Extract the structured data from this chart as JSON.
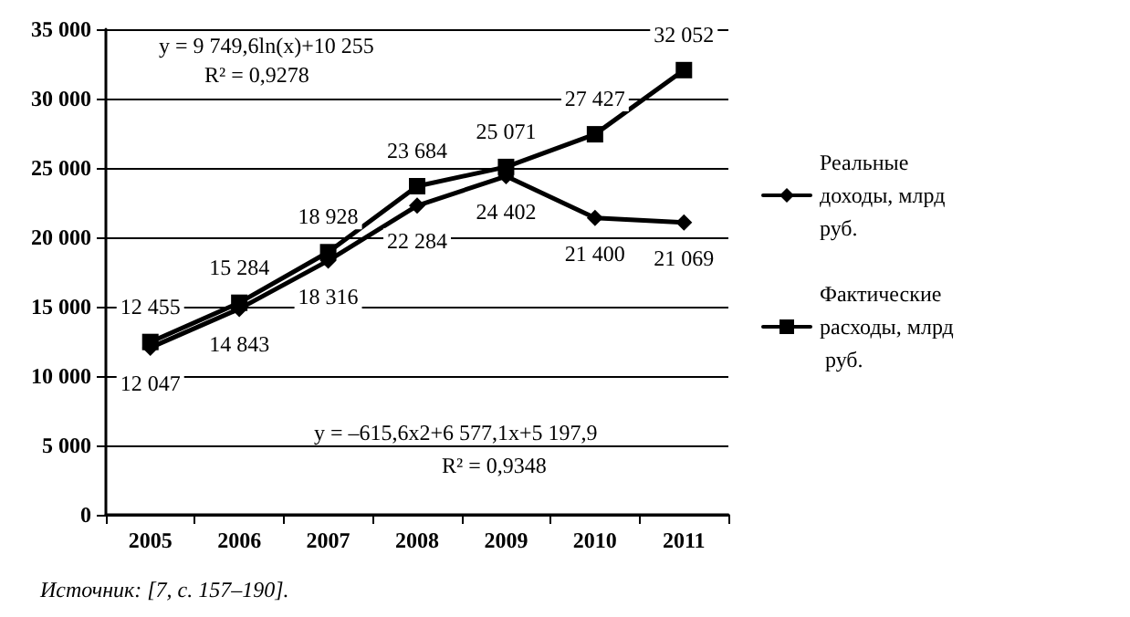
{
  "chart_data": {
    "type": "line",
    "categories": [
      "2005",
      "2006",
      "2007",
      "2008",
      "2009",
      "2010",
      "2011"
    ],
    "series": [
      {
        "name": "Реальные доходы, млрд руб.",
        "color": "#000000",
        "marker": "diamond",
        "values": [
          12047,
          14843,
          18316,
          22284,
          24402,
          21400,
          21069
        ],
        "value_labels": [
          "12 047",
          "14 843",
          "18 316",
          "22 284",
          "24 402",
          "21 400",
          "21 069"
        ]
      },
      {
        "name": "Фактические расходы, млрд руб.",
        "color": "#000000",
        "marker": "square",
        "values": [
          12455,
          15284,
          18928,
          23684,
          25071,
          27427,
          32052
        ],
        "value_labels": [
          "12 455",
          "15 284",
          "18 928",
          "23 684",
          "25 071",
          "27 427",
          "32 052"
        ]
      }
    ],
    "ylim": [
      0,
      35000
    ],
    "yticks": [
      {
        "value": 0,
        "label": "0"
      },
      {
        "value": 5000,
        "label": "5 000"
      },
      {
        "value": 10000,
        "label": "10 000"
      },
      {
        "value": 15000,
        "label": "15 000"
      },
      {
        "value": 20000,
        "label": "20 000"
      },
      {
        "value": 25000,
        "label": "25 000"
      },
      {
        "value": 30000,
        "label": "30 000"
      },
      {
        "value": 35000,
        "label": "35 000"
      }
    ],
    "grid": "y",
    "legend": "right",
    "line_style": "solid",
    "annotations": [
      "y = 9 749,6ln(x)+10 255",
      "R² = 0,9278",
      "y = –615,6x2+6 577,1x+5 197,9",
      "R² = 0,9348",
      "Источник: [7, с. 157–190]."
    ]
  }
}
